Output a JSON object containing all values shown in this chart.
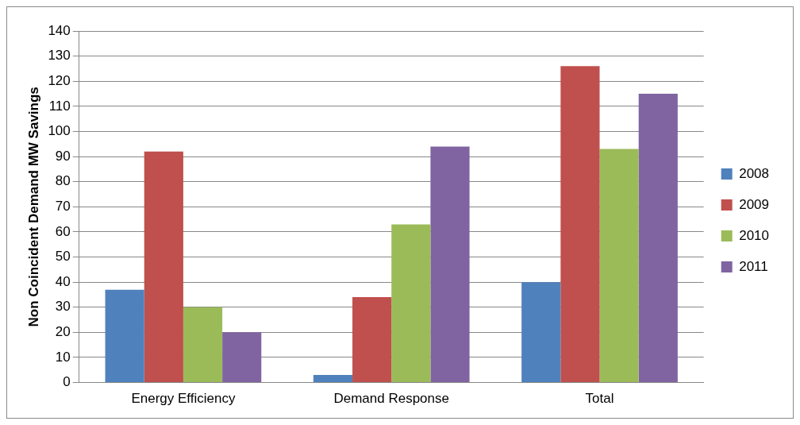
{
  "chart_data": {
    "type": "bar",
    "ylabel": "Non Coincident Demand MW Savings",
    "categories": [
      "Energy Efficiency",
      "Demand Response",
      "Total"
    ],
    "series": [
      {
        "name": "2008",
        "color": "#4f81bd",
        "values": [
          37,
          3,
          40
        ]
      },
      {
        "name": "2009",
        "color": "#c0504d",
        "values": [
          92,
          34,
          126
        ]
      },
      {
        "name": "2010",
        "color": "#9bbb59",
        "values": [
          30,
          63,
          93
        ]
      },
      {
        "name": "2011",
        "color": "#8064a2",
        "values": [
          20,
          94,
          115
        ]
      }
    ],
    "ylim": [
      0,
      140
    ],
    "yticks": [
      0,
      10,
      20,
      30,
      40,
      50,
      60,
      70,
      80,
      90,
      100,
      110,
      120,
      130,
      140
    ],
    "grid": "y",
    "legend": "right"
  }
}
